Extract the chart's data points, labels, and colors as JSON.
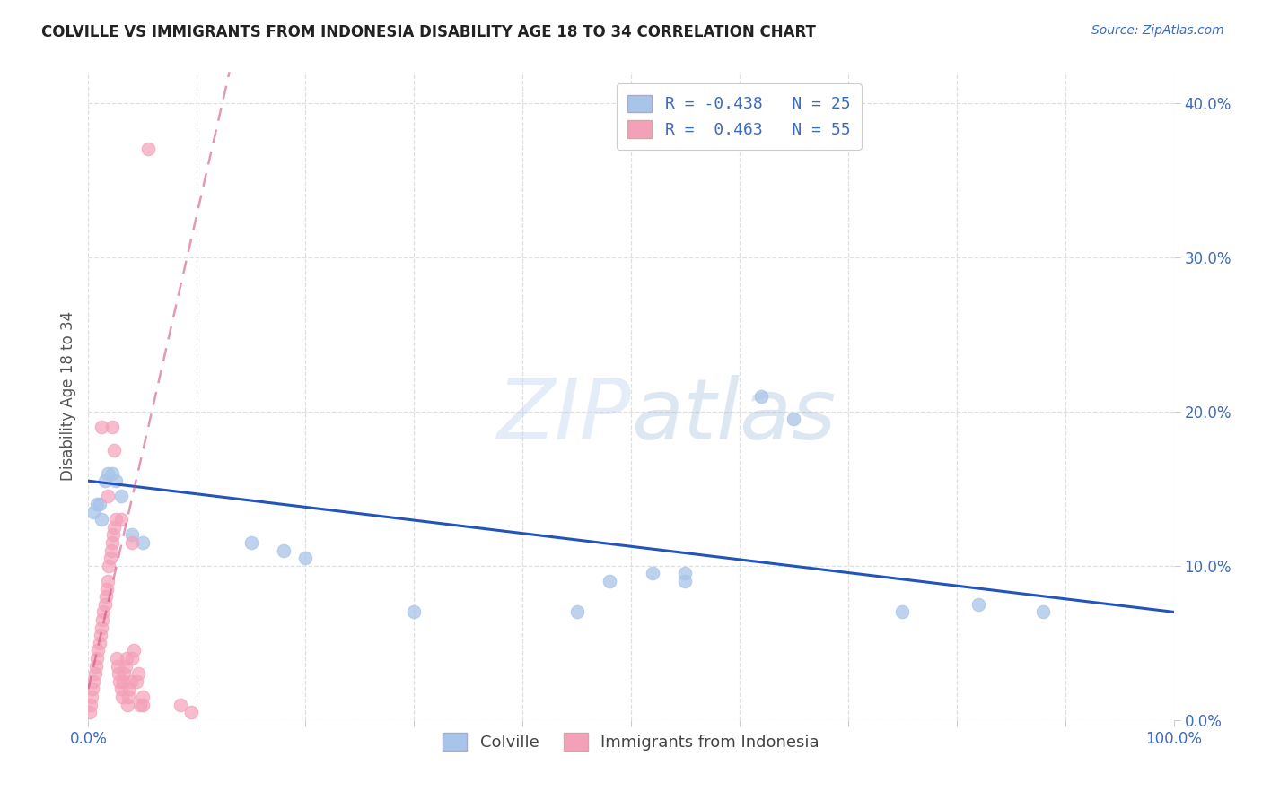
{
  "title": "COLVILLE VS IMMIGRANTS FROM INDONESIA DISABILITY AGE 18 TO 34 CORRELATION CHART",
  "source": "Source: ZipAtlas.com",
  "ylabel": "Disability Age 18 to 34",
  "xlim": [
    0,
    1.0
  ],
  "ylim": [
    0,
    0.42
  ],
  "xtick_positions": [
    0.0,
    0.1,
    0.2,
    0.3,
    0.4,
    0.5,
    0.6,
    0.7,
    0.8,
    0.9,
    1.0
  ],
  "xtick_labeled": [
    0.0,
    1.0
  ],
  "xtick_label_values": [
    "0.0%",
    "100.0%"
  ],
  "yticks_right": [
    0.0,
    0.1,
    0.2,
    0.3,
    0.4
  ],
  "ytick_labels_right": [
    "0.0%",
    "10.0%",
    "20.0%",
    "30.0%",
    "40.0%"
  ],
  "blue_color": "#a8c4e8",
  "pink_color": "#f4a0b8",
  "blue_line_color": "#2255bb",
  "pink_line_color": "#cc4477",
  "pink_dash_color": "#ccaabb",
  "R_blue": -0.438,
  "N_blue": 25,
  "R_pink": 0.463,
  "N_pink": 55,
  "blue_points_x": [
    0.005,
    0.008,
    0.01,
    0.012,
    0.015,
    0.018,
    0.022,
    0.025,
    0.03,
    0.04,
    0.05,
    0.15,
    0.18,
    0.2,
    0.3,
    0.45,
    0.48,
    0.52,
    0.55,
    0.62,
    0.65,
    0.75,
    0.82,
    0.88,
    0.55
  ],
  "blue_points_y": [
    0.135,
    0.14,
    0.14,
    0.13,
    0.155,
    0.16,
    0.16,
    0.155,
    0.145,
    0.12,
    0.115,
    0.115,
    0.11,
    0.105,
    0.07,
    0.07,
    0.09,
    0.095,
    0.09,
    0.21,
    0.195,
    0.07,
    0.075,
    0.07,
    0.095
  ],
  "pink_points_x": [
    0.001,
    0.002,
    0.003,
    0.004,
    0.005,
    0.006,
    0.007,
    0.008,
    0.009,
    0.01,
    0.011,
    0.012,
    0.013,
    0.014,
    0.015,
    0.016,
    0.017,
    0.018,
    0.019,
    0.02,
    0.021,
    0.022,
    0.023,
    0.024,
    0.025,
    0.026,
    0.027,
    0.028,
    0.029,
    0.03,
    0.031,
    0.032,
    0.033,
    0.034,
    0.035,
    0.036,
    0.037,
    0.038,
    0.039,
    0.04,
    0.042,
    0.044,
    0.046,
    0.048,
    0.05,
    0.012,
    0.022,
    0.024,
    0.05,
    0.085,
    0.095,
    0.03,
    0.04,
    0.018,
    0.055
  ],
  "pink_points_y": [
    0.005,
    0.01,
    0.015,
    0.02,
    0.025,
    0.03,
    0.035,
    0.04,
    0.045,
    0.05,
    0.055,
    0.06,
    0.065,
    0.07,
    0.075,
    0.08,
    0.085,
    0.09,
    0.1,
    0.105,
    0.11,
    0.115,
    0.12,
    0.125,
    0.13,
    0.04,
    0.035,
    0.03,
    0.025,
    0.02,
    0.015,
    0.025,
    0.03,
    0.035,
    0.04,
    0.01,
    0.015,
    0.02,
    0.025,
    0.04,
    0.045,
    0.025,
    0.03,
    0.01,
    0.015,
    0.19,
    0.19,
    0.175,
    0.01,
    0.01,
    0.005,
    0.13,
    0.115,
    0.145,
    0.37
  ],
  "blue_line_x0": 0.0,
  "blue_line_y0": 0.155,
  "blue_line_x1": 1.0,
  "blue_line_y1": 0.07,
  "pink_line_x0": 0.0,
  "pink_line_y0": 0.02,
  "pink_line_x1": 0.13,
  "pink_line_y1": 0.42,
  "watermark_zip": "ZIP",
  "watermark_atlas": "atlas",
  "background_color": "#ffffff",
  "grid_color": "#d8d8d8"
}
